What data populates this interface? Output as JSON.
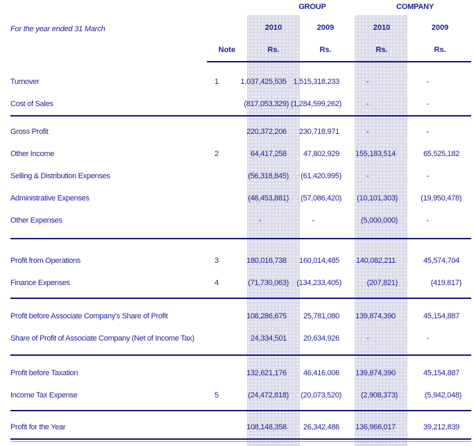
{
  "colors": {
    "text": "#1e1e96",
    "rule": "#141480",
    "band": "#dbdbe9"
  },
  "header": {
    "period_label": "For the year ended 31 March",
    "note_label": "Note",
    "group_label": "GROUP",
    "company_label": "COMPANY",
    "columns": [
      {
        "segment": "GROUP",
        "year": "2010",
        "currency": "Rs."
      },
      {
        "segment": "GROUP",
        "year": "2009",
        "currency": "Rs."
      },
      {
        "segment": "COMPANY",
        "year": "2010",
        "currency": "Rs."
      },
      {
        "segment": "COMPANY",
        "year": "2009",
        "currency": "Rs."
      }
    ]
  },
  "table": {
    "sections": [
      {
        "rule_after": "single",
        "rows": [
          {
            "label": "Turnover",
            "note": "1",
            "g2010": "1,037,425,535",
            "g2009": "1,515,318,233",
            "c2010": "-",
            "c2009": "-"
          },
          {
            "label": "Cost of Sales",
            "note": "",
            "g2010": "(817,053,329)",
            "g2009": "(1,284,599,262)",
            "c2010": "-",
            "c2009": "-"
          }
        ]
      },
      {
        "rule_after": "single",
        "rows": [
          {
            "label": "Gross Profit",
            "note": "",
            "g2010": "220,372,206",
            "g2009": "230,718,971",
            "c2010": "-",
            "c2009": "-"
          },
          {
            "label": "Other Income",
            "note": "2",
            "g2010": "64,417,258",
            "g2009": "47,802,929",
            "c2010": "155,183,514",
            "c2009": "65,525,182"
          },
          {
            "label": "Selling & Distribution Expenses",
            "note": "",
            "g2010": "(56,318,845)",
            "g2009": "(61,420,995)",
            "c2010": "-",
            "c2009": "-"
          },
          {
            "label": "Administrative Expenses",
            "note": "",
            "g2010": "(48,453,881)",
            "g2009": "(57,086,420)",
            "c2010": "(10,101,303)",
            "c2009": "(19,950,478)"
          },
          {
            "label": "Other Expenses",
            "note": "",
            "g2010": "-",
            "g2009": "-",
            "c2010": "(5,000,000)",
            "c2009": "-"
          }
        ]
      },
      {
        "rule_after": "single",
        "rows": [
          {
            "label": "Profit from Operations",
            "note": "3",
            "g2010": "180,016,738",
            "g2009": "160,014,485",
            "c2010": "140,082,211",
            "c2009": "45,574,704"
          },
          {
            "label": "Finance Expenses",
            "note": "4",
            "g2010": "(71,730,063)",
            "g2009": "(134,233,405)",
            "c2010": "(207,821)",
            "c2009": "(419,817)"
          }
        ]
      },
      {
        "rule_after": "single",
        "rows": [
          {
            "label": "Profit before Associate Company's Share of Profit",
            "note": "",
            "g2010": "108,286,675",
            "g2009": "25,781,080",
            "c2010": "139,874,390",
            "c2009": "45,154,887"
          },
          {
            "label": "Share of Profit of Associate Company (Net of Income Tax)",
            "note": "",
            "g2010": "24,334,501",
            "g2009": "20,634,926",
            "c2010": "-",
            "c2009": "-"
          }
        ]
      },
      {
        "rule_after": "single",
        "rows": [
          {
            "label": "Profit before Taxation",
            "note": "",
            "g2010": "132,621,176",
            "g2009": "46,416,006",
            "c2010": "139,874,390",
            "c2009": "45,154,887"
          },
          {
            "label": "Income Tax Expense",
            "note": "5",
            "g2010": "(24,472,818)",
            "g2009": "(20,073,520)",
            "c2010": "(2,908,373)",
            "c2009": "(5,942,048)"
          }
        ]
      },
      {
        "rule_after": "double",
        "rows": [
          {
            "label": "Profit for the Year",
            "note": "",
            "g2010": "108,148,358",
            "g2009": "26,342,486",
            "c2010": "136,966,017",
            "c2009": "39,212,839"
          }
        ]
      }
    ]
  }
}
